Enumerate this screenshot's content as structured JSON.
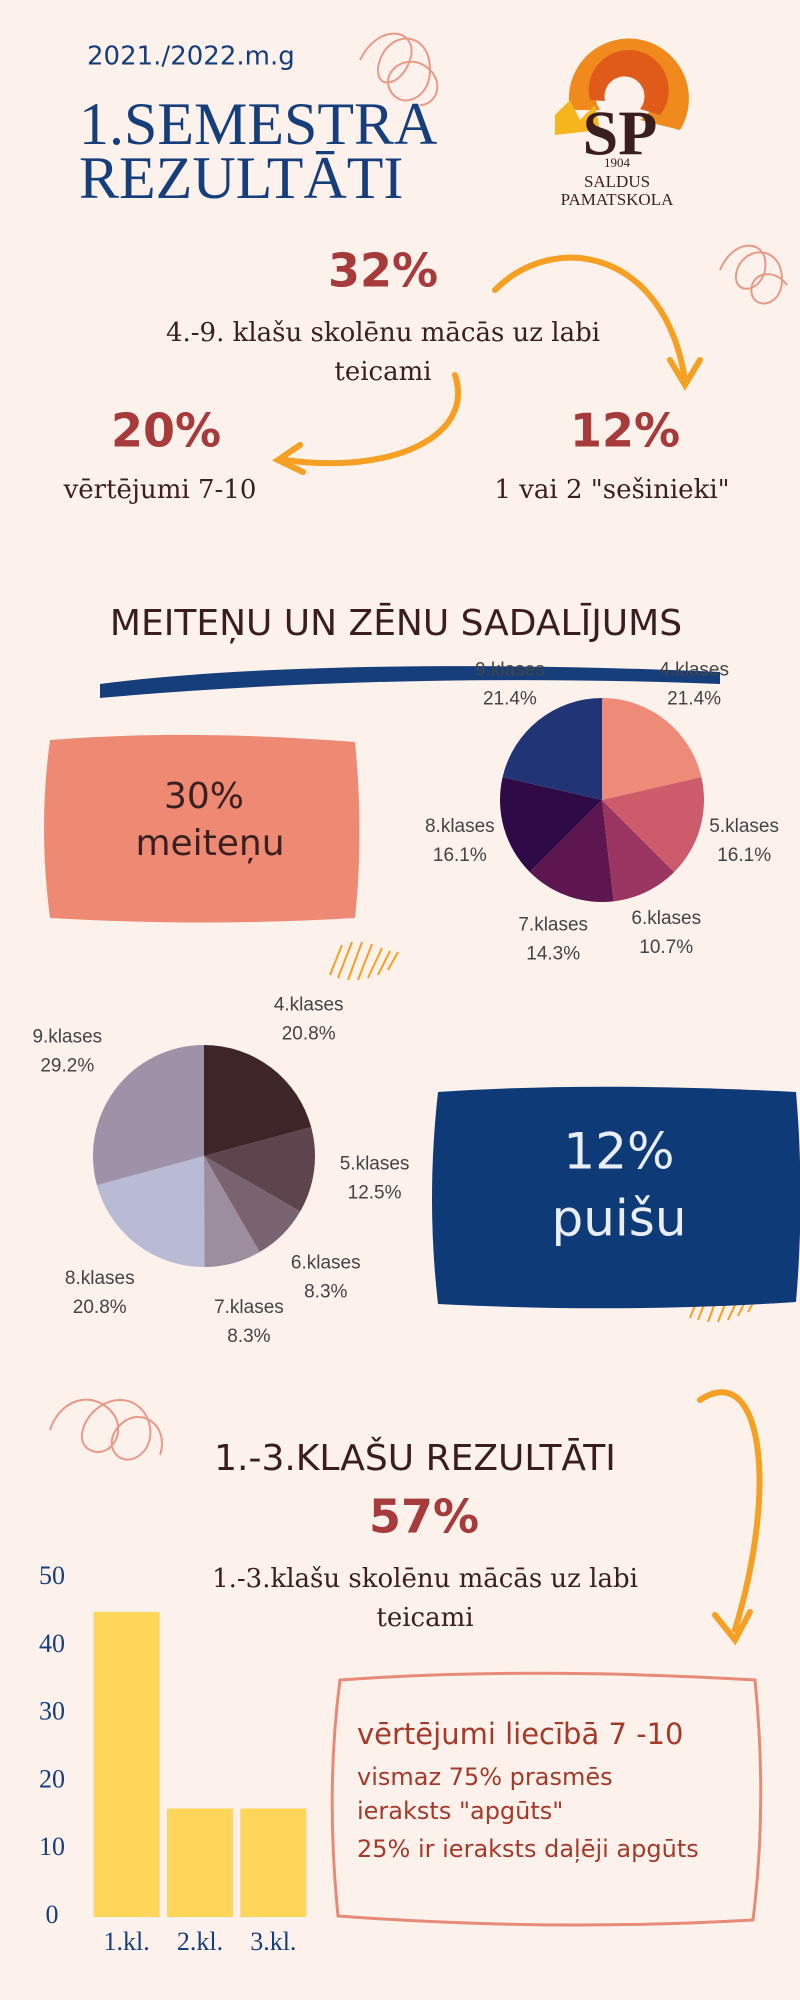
{
  "header": {
    "year": "2021./2022.m.g",
    "title_line1": "1.SEMESTRA",
    "title_line2": "REZULTĀTI"
  },
  "logo": {
    "year": "1904",
    "line1": "SALDUS",
    "line2": "PAMATSKOLA"
  },
  "stats": {
    "main_value": "32%",
    "main_text_line1": "4.-9. klašu skolēnu mācās uz labi",
    "main_text_line2": "teicami",
    "left_value": "20%",
    "left_text": "vērtējumi 7-10",
    "right_value": "12%",
    "right_text": "1 vai 2 \"sešinieki\""
  },
  "section_gender": {
    "title": "MEITEŅU UN ZĒNU SADALĪJUMS",
    "girls_value": "30%",
    "girls_label": "meiteņu",
    "boys_value": "12%",
    "boys_label": "puišu"
  },
  "section_primary": {
    "title": "1.-3.KLAŠU REZULTĀTI",
    "value": "57%",
    "text_line1": "1.-3.klašu skolēnu mācās uz labi",
    "text_line2": "teicami",
    "box_title": "vērtējumi liecībā 7 -10",
    "box_line1": "vismaz 75% prasmēs",
    "box_line2": "ieraksts \"apgūts\"",
    "box_line3": "25% ir ieraksts daļēji apgūts"
  },
  "chart_data": [
    {
      "type": "pie",
      "categories": [
        "4.klases",
        "5.klases",
        "6.klases",
        "7.klases",
        "8.klases",
        "9.klases"
      ],
      "values": [
        21.4,
        16.1,
        10.7,
        14.3,
        16.1,
        21.4
      ],
      "value_labels": [
        "21.4%",
        "16.1%",
        "10.7%",
        "14.3%",
        "16.1%",
        "21.4%"
      ],
      "colors": [
        "#ee8a78",
        "#cc5b6c",
        "#9a3461",
        "#5e1650",
        "#2e0a46",
        "#213476"
      ]
    },
    {
      "type": "pie",
      "categories": [
        "4.klases",
        "5.klases",
        "6.klases",
        "7.klases",
        "8.klases",
        "9.klases"
      ],
      "values": [
        20.8,
        12.5,
        8.3,
        8.3,
        20.8,
        29.2
      ],
      "value_labels": [
        "20.8%",
        "12.5%",
        "8.3%",
        "8.3%",
        "20.8%",
        "29.2%"
      ],
      "colors": [
        "#3e2527",
        "#5e444d",
        "#7a6370",
        "#9c8e9e",
        "#b9bad4",
        "#9e91a8"
      ]
    },
    {
      "type": "bar",
      "categories": [
        "1.kl.",
        "2.kl.",
        "3.kl."
      ],
      "values": [
        45,
        16,
        16
      ],
      "color": "#ffd65a",
      "ylim": [
        0,
        50
      ],
      "yticks": [
        0,
        10,
        20,
        30,
        40,
        50
      ],
      "grid": false
    }
  ]
}
